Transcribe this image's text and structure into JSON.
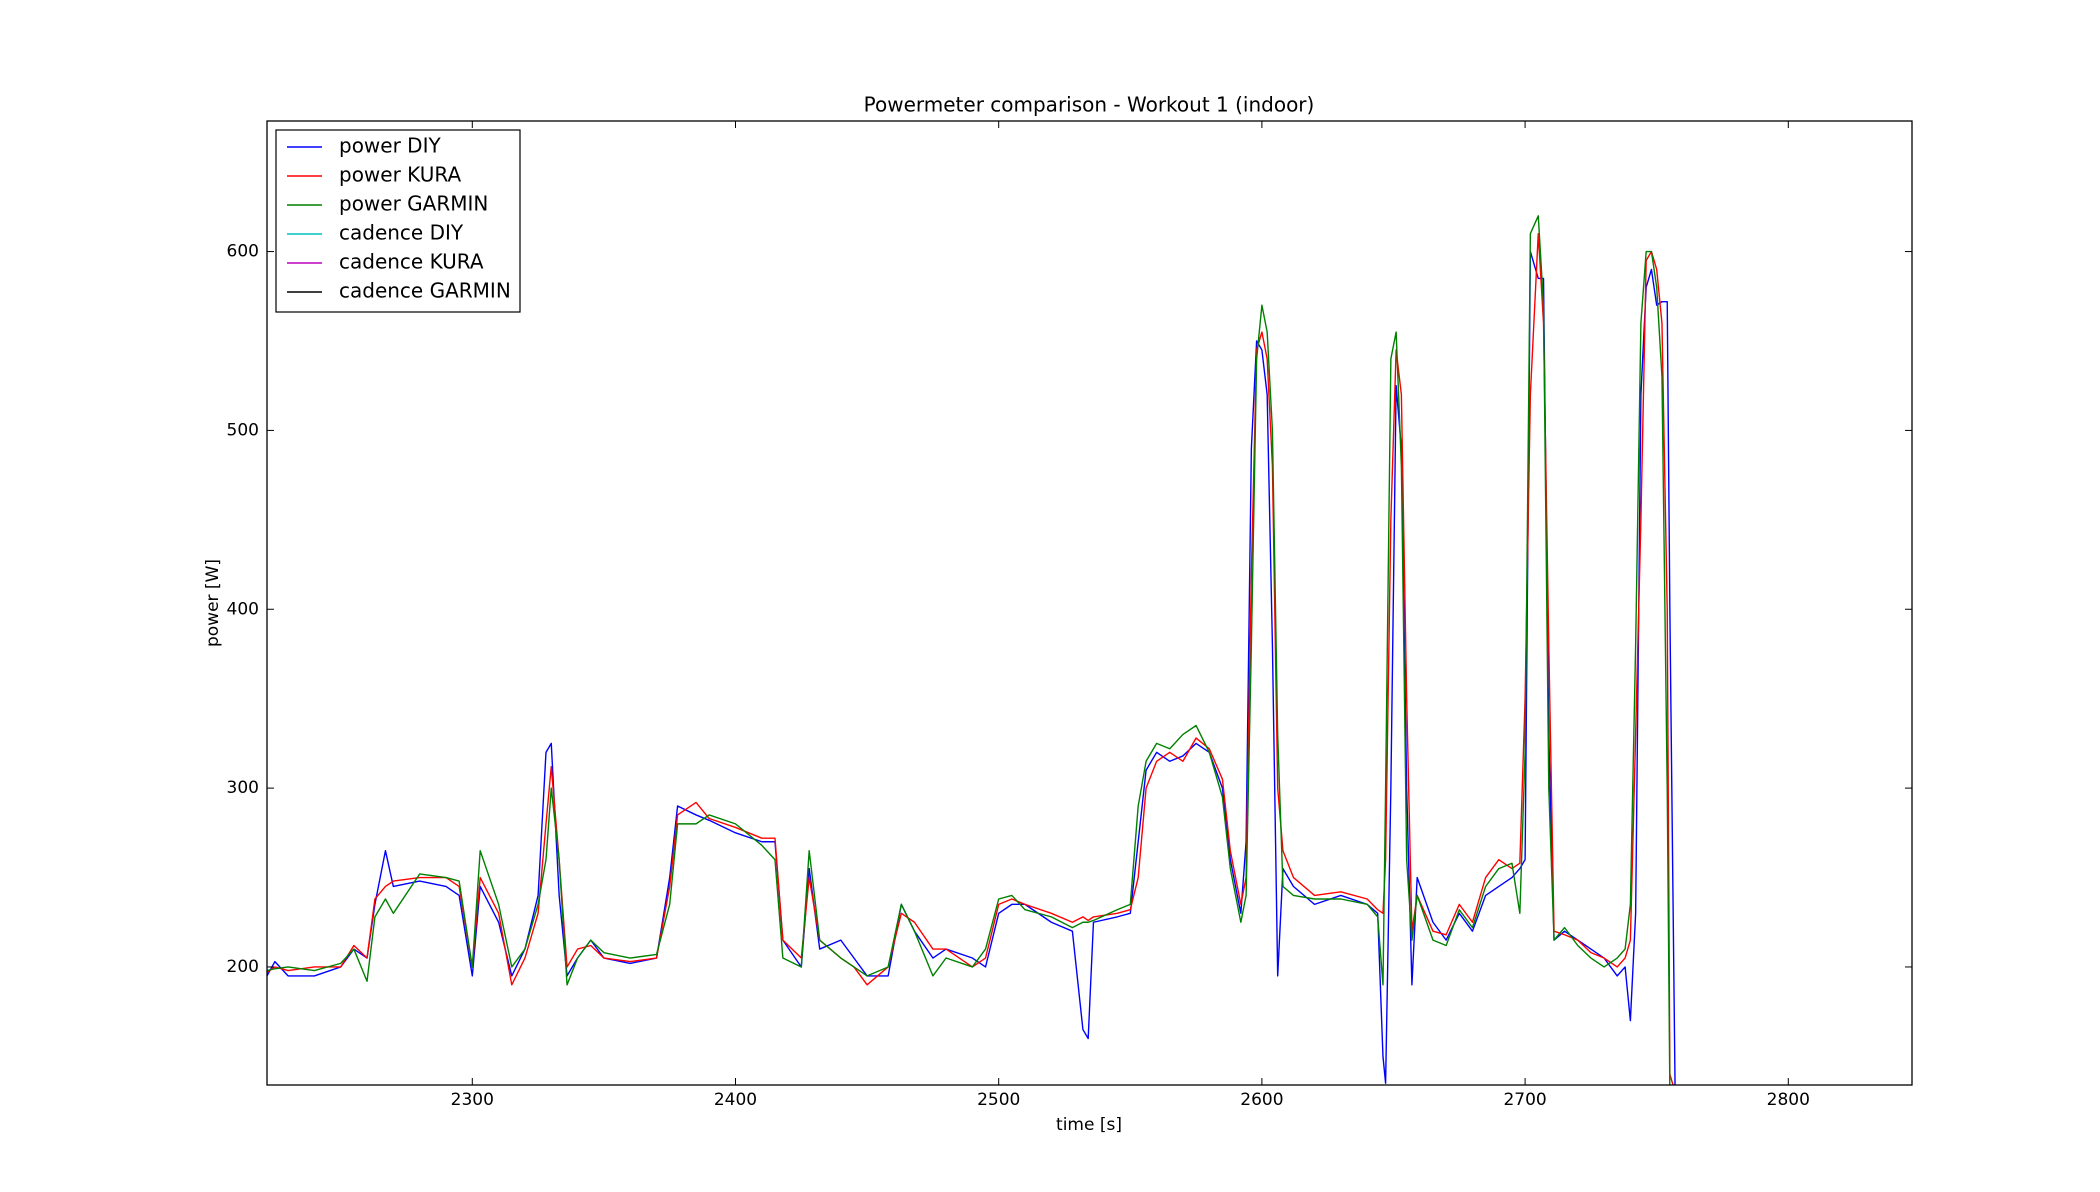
{
  "chart_data": {
    "type": "line",
    "title": "Powermeter comparison - Workout 1 (indoor)",
    "x_label": "time [s]",
    "y_label": "power [W]",
    "xlim": [
      2222,
      2847
    ],
    "ylim": [
      134,
      673
    ],
    "xticks": [
      2300,
      2400,
      2500,
      2600,
      2700,
      2800
    ],
    "yticks": [
      200,
      300,
      400,
      500,
      600
    ],
    "legend": "upper left",
    "x": [
      2222,
      2225,
      2230,
      2240,
      2250,
      2255,
      2260,
      2263,
      2267,
      2270,
      2280,
      2290,
      2295,
      2300,
      2303,
      2310,
      2315,
      2320,
      2325,
      2328,
      2330,
      2333,
      2336,
      2340,
      2345,
      2350,
      2360,
      2370,
      2375,
      2378,
      2385,
      2390,
      2400,
      2410,
      2415,
      2418,
      2425,
      2428,
      2432,
      2440,
      2445,
      2450,
      2458,
      2463,
      2468,
      2475,
      2480,
      2490,
      2495,
      2500,
      2505,
      2510,
      2520,
      2528,
      2532,
      2534,
      2536,
      2545,
      2550,
      2553,
      2556,
      2560,
      2565,
      2570,
      2575,
      2580,
      2585,
      2588,
      2592,
      2594,
      2596,
      2598,
      2600,
      2602,
      2604,
      2606,
      2608,
      2612,
      2620,
      2630,
      2640,
      2644,
      2646,
      2647,
      2649,
      2651,
      2653,
      2655,
      2657,
      2659,
      2665,
      2670,
      2675,
      2680,
      2685,
      2690,
      2695,
      2698,
      2700,
      2702,
      2705,
      2707,
      2709,
      2711,
      2715,
      2720,
      2725,
      2730,
      2735,
      2738,
      2740,
      2742,
      2744,
      2746,
      2748,
      2750,
      2752,
      2754,
      2755,
      2757
    ],
    "series": [
      {
        "name": "power DIY",
        "color": "#0000ff",
        "values": [
          195,
          203,
          195,
          195,
          200,
          210,
          205,
          235,
          265,
          245,
          248,
          245,
          240,
          195,
          245,
          225,
          195,
          210,
          240,
          320,
          325,
          240,
          195,
          205,
          215,
          205,
          202,
          205,
          250,
          290,
          285,
          282,
          275,
          270,
          270,
          215,
          200,
          255,
          210,
          215,
          205,
          195,
          195,
          235,
          220,
          205,
          210,
          205,
          200,
          230,
          235,
          235,
          225,
          220,
          165,
          160,
          225,
          228,
          230,
          270,
          310,
          320,
          315,
          318,
          325,
          320,
          300,
          260,
          230,
          270,
          490,
          550,
          545,
          520,
          380,
          195,
          255,
          245,
          235,
          240,
          235,
          230,
          150,
          135,
          300,
          525,
          490,
          300,
          190,
          250,
          225,
          215,
          230,
          220,
          240,
          245,
          250,
          255,
          260,
          600,
          585,
          585,
          330,
          215,
          220,
          215,
          210,
          205,
          195,
          200,
          170,
          230,
          520,
          580,
          590,
          570,
          572,
          572,
          400,
          130
        ]
      },
      {
        "name": "power KURA",
        "color": "#ff0000",
        "values": [
          197,
          200,
          198,
          200,
          200,
          212,
          205,
          238,
          245,
          248,
          250,
          250,
          245,
          200,
          250,
          230,
          190,
          205,
          230,
          280,
          312,
          260,
          200,
          210,
          212,
          205,
          203,
          205,
          245,
          285,
          292,
          283,
          278,
          272,
          272,
          215,
          205,
          250,
          215,
          205,
          200,
          190,
          200,
          230,
          225,
          210,
          210,
          200,
          205,
          235,
          238,
          235,
          230,
          225,
          228,
          226,
          228,
          230,
          232,
          250,
          300,
          315,
          320,
          315,
          328,
          322,
          305,
          265,
          235,
          250,
          420,
          545,
          555,
          540,
          480,
          300,
          265,
          250,
          240,
          242,
          238,
          232,
          230,
          260,
          450,
          545,
          520,
          350,
          220,
          240,
          220,
          218,
          235,
          225,
          250,
          260,
          255,
          258,
          350,
          520,
          610,
          560,
          380,
          220,
          218,
          215,
          208,
          205,
          200,
          205,
          215,
          330,
          450,
          595,
          600,
          590,
          560,
          400,
          140,
          130
        ]
      },
      {
        "name": "power GARMIN",
        "color": "#008000",
        "values": [
          198,
          199,
          200,
          198,
          202,
          210,
          192,
          228,
          238,
          230,
          252,
          250,
          248,
          200,
          265,
          235,
          200,
          210,
          235,
          260,
          300,
          260,
          190,
          205,
          215,
          208,
          205,
          207,
          235,
          280,
          280,
          285,
          280,
          268,
          260,
          205,
          200,
          265,
          215,
          205,
          200,
          195,
          200,
          235,
          220,
          195,
          205,
          200,
          210,
          238,
          240,
          232,
          228,
          222,
          225,
          225,
          226,
          232,
          235,
          290,
          315,
          325,
          322,
          330,
          335,
          320,
          295,
          255,
          225,
          240,
          380,
          540,
          570,
          555,
          500,
          330,
          245,
          240,
          238,
          238,
          235,
          228,
          190,
          300,
          540,
          555,
          480,
          260,
          215,
          240,
          215,
          212,
          232,
          222,
          245,
          255,
          258,
          230,
          320,
          610,
          620,
          570,
          300,
          215,
          222,
          212,
          205,
          200,
          205,
          210,
          235,
          380,
          560,
          600,
          600,
          580,
          530,
          300,
          130,
          130
        ]
      },
      {
        "name": "cadence DIY",
        "color": "#00bfbf"
      },
      {
        "name": "cadence KURA",
        "color": "#bf00bf"
      },
      {
        "name": "cadence GARMIN",
        "color": "#000000"
      }
    ]
  }
}
